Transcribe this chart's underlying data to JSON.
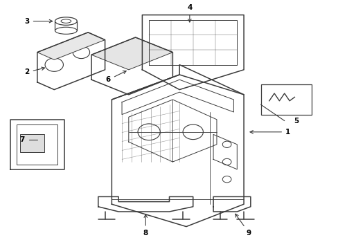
{
  "background_color": "#ffffff",
  "line_color": "#3a3a3a",
  "label_color": "#000000",
  "figsize": [
    4.89,
    3.6
  ],
  "dpi": 100
}
